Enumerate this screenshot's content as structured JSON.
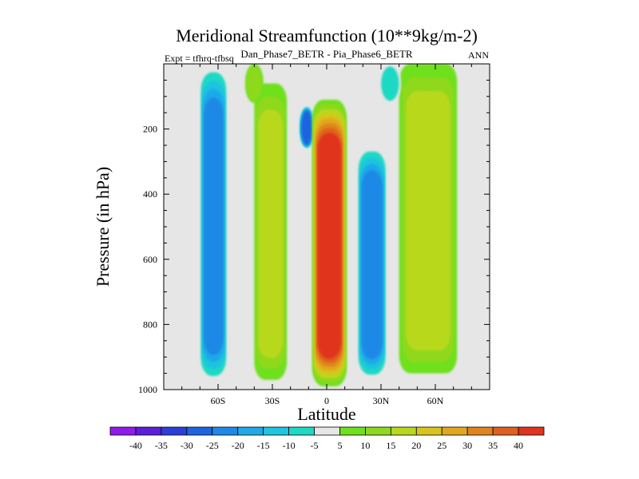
{
  "chart_data": {
    "type": "contour",
    "title": "Meridional Streamfunction (10**9kg/m-2)",
    "subtitle": "Dan_Phase7_BETR - Pia_Phase6_BETR",
    "left_note": "Expt = tfhrq-tfbsq",
    "right_note": "ANN",
    "xlabel": "Latitude",
    "ylabel": "Pressure (in hPa)",
    "xlim": [
      -90,
      90
    ],
    "ylim": [
      1000,
      0
    ],
    "x_ticks": [
      {
        "value": -60,
        "label": "60S"
      },
      {
        "value": -30,
        "label": "30S"
      },
      {
        "value": 0,
        "label": "0"
      },
      {
        "value": 30,
        "label": "30N"
      },
      {
        "value": 60,
        "label": "60N"
      }
    ],
    "y_ticks": [
      {
        "value": 200,
        "label": "200"
      },
      {
        "value": 400,
        "label": "400"
      },
      {
        "value": 600,
        "label": "600"
      },
      {
        "value": 800,
        "label": "800"
      },
      {
        "value": 1000,
        "label": "1000"
      }
    ],
    "colorbar": {
      "labels": [
        "-40",
        "-35",
        "-30",
        "-25",
        "-20",
        "-15",
        "-10",
        "-5",
        "5",
        "10",
        "15",
        "20",
        "25",
        "30",
        "35",
        "40"
      ],
      "colors": [
        "#8f1ce8",
        "#5a1fd6",
        "#2c40d6",
        "#1f63e0",
        "#1f89e6",
        "#1fa9e8",
        "#1fc4e0",
        "#1fd9c4",
        "#e6e6e6",
        "#6ee01f",
        "#8fd81f",
        "#b8d81f",
        "#d9c41f",
        "#e0a81f",
        "#e0841f",
        "#e0611f",
        "#e0341f"
      ]
    },
    "regions": [
      {
        "name": "sh-high-lat-negative",
        "lat": [
          -70,
          -55
        ],
        "p": [
          0,
          980
        ],
        "level": -20,
        "core_level": -25
      },
      {
        "name": "sh-mid-lat-positive",
        "lat": [
          -40,
          -22
        ],
        "p": [
          60,
          970
        ],
        "level": 10,
        "core_level": 15
      },
      {
        "name": "sh-upper-negative",
        "lat": [
          -15,
          -7
        ],
        "p": [
          130,
          260
        ],
        "level": -25,
        "core_level": -30
      },
      {
        "name": "tropical-hadley-positive",
        "lat": [
          -8,
          11
        ],
        "p": [
          110,
          990
        ],
        "level": 40,
        "core_level": 40
      },
      {
        "name": "nh-subtropical-negative",
        "lat": [
          17,
          33
        ],
        "p": [
          250,
          970
        ],
        "level": -15,
        "core_level": -25
      },
      {
        "name": "nh-mid-lat-positive",
        "lat": [
          40,
          72
        ],
        "p": [
          0,
          950
        ],
        "level": 10,
        "core_level": 15
      },
      {
        "name": "sh-upper-small-positive",
        "lat": [
          -45,
          -35
        ],
        "p": [
          0,
          120
        ],
        "level": 10,
        "core_level": 10
      },
      {
        "name": "nh-upper-small-negative",
        "lat": [
          29,
          41
        ],
        "p": [
          0,
          120
        ],
        "level": -10,
        "core_level": -10
      }
    ]
  }
}
